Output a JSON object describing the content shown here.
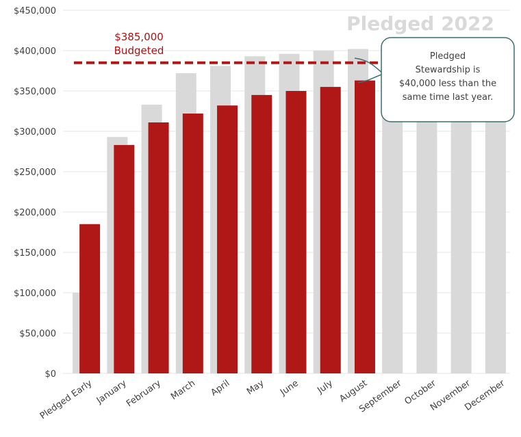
{
  "chart_data": {
    "type": "bar",
    "title": "Pledged 2022",
    "categories": [
      "Pledged Early",
      "January",
      "February",
      "March",
      "April",
      "May",
      "June",
      "July",
      "August",
      "September",
      "October",
      "November",
      "December"
    ],
    "series": [
      {
        "values": [
          100000,
          293000,
          333000,
          372000,
          381000,
          393000,
          396000,
          400000,
          402000,
          403000,
          404000,
          408000,
          410000
        ],
        "color": "#d9d9d9"
      },
      {
        "values": [
          185000,
          283000,
          311000,
          322000,
          332000,
          345000,
          350000,
          355000,
          363000,
          null,
          null,
          null,
          null
        ],
        "color": "#b01818"
      }
    ],
    "y_ticks": [
      "$0",
      "$50,000",
      "$100,000",
      "$150,000",
      "$200,000",
      "$250,000",
      "$300,000",
      "$350,000",
      "$400,000",
      "$450,000"
    ],
    "ylim": [
      0,
      450000
    ],
    "grid": true,
    "budget": {
      "value": 385000,
      "label_line1": "$385,000",
      "label_line2": "Budgeted",
      "color": "#b01818"
    },
    "callout": {
      "lines": [
        "Pledged",
        "Stewardship is",
        "$40,000 less than the",
        "same time last year."
      ],
      "border_color": "#3a6f6f"
    }
  }
}
